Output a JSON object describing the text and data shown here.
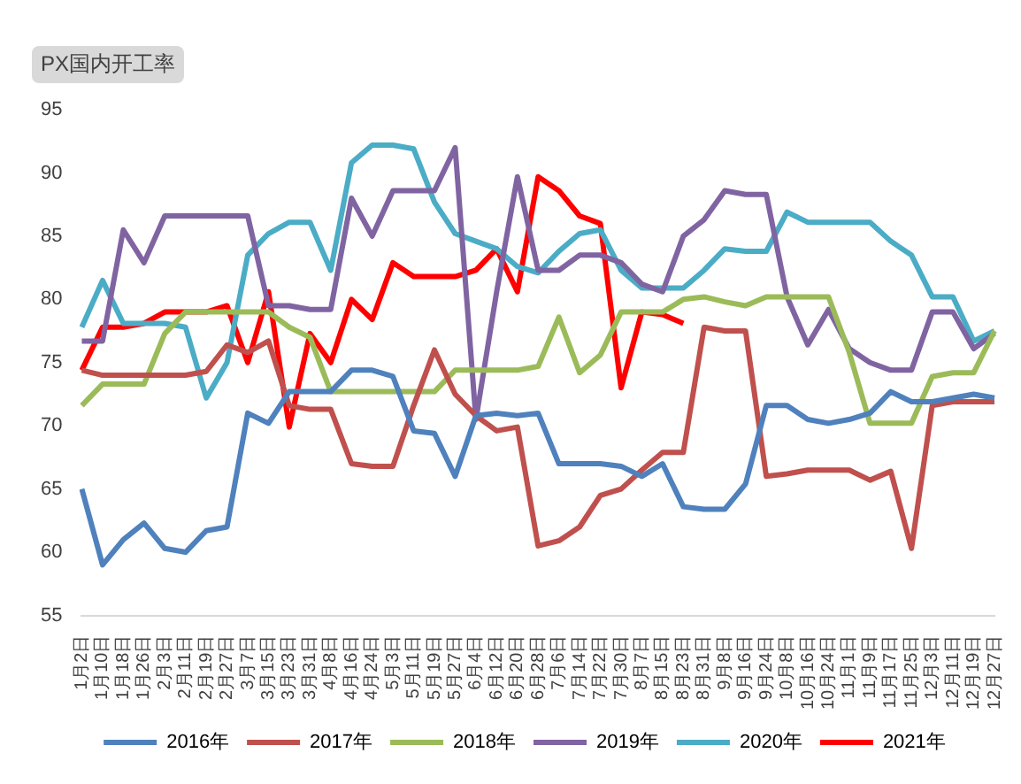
{
  "chart_data": {
    "type": "line",
    "title": "PX国内开工率",
    "categories": [
      "1月2日",
      "1月10日",
      "1月18日",
      "1月26日",
      "2月3日",
      "2月11日",
      "2月19日",
      "2月27日",
      "3月7日",
      "3月15日",
      "3月23日",
      "3月31日",
      "4月8日",
      "4月16日",
      "4月24日",
      "5月3日",
      "5月11日",
      "5月19日",
      "5月27日",
      "6月4日",
      "6月12日",
      "6月20日",
      "6月28日",
      "7月6日",
      "7月14日",
      "7月22日",
      "7月30日",
      "8月7日",
      "8月15日",
      "8月23日",
      "8月31日",
      "9月8日",
      "9月16日",
      "9月24日",
      "10月8日",
      "10月16日",
      "10月24日",
      "11月1日",
      "11月9日",
      "11月17日",
      "11月25日",
      "12月3日",
      "12月11日",
      "12月19日",
      "12月27日"
    ],
    "series": [
      {
        "name": "2016年",
        "color": "#4f81bd",
        "values": [
          65,
          59,
          61,
          62.3,
          60.3,
          60,
          61.7,
          62,
          71,
          70.2,
          72.7,
          72.7,
          72.7,
          74.4,
          74.4,
          73.9,
          69.6,
          69.4,
          66,
          70.8,
          71,
          70.8,
          71,
          67,
          67,
          67,
          66.8,
          66,
          67,
          63.6,
          63.4,
          63.4,
          65.4,
          71.6,
          71.6,
          70.5,
          70.2,
          70.5,
          71,
          72.7,
          71.9,
          71.9,
          72.2,
          72.5,
          72.2
        ]
      },
      {
        "name": "2017年",
        "color": "#c0504d",
        "values": [
          74.4,
          74,
          74,
          74,
          74,
          74,
          74.3,
          76.4,
          75.8,
          76.7,
          71.6,
          71.3,
          71.3,
          67,
          66.8,
          66.8,
          71.6,
          76,
          72.5,
          70.8,
          69.6,
          69.9,
          60.5,
          60.9,
          62,
          64.5,
          65,
          66.5,
          67.9,
          67.9,
          77.8,
          77.5,
          77.5,
          66,
          66.2,
          66.5,
          66.5,
          66.5,
          65.7,
          66.4,
          60.3,
          71.6,
          71.9,
          71.9,
          71.9
        ]
      },
      {
        "name": "2018年",
        "color": "#9bbb59",
        "values": [
          71.6,
          73.3,
          73.3,
          73.3,
          77.3,
          79,
          79,
          79,
          79,
          79,
          77.8,
          77,
          72.7,
          72.7,
          72.7,
          72.7,
          72.7,
          72.7,
          74.4,
          74.4,
          74.4,
          74.4,
          74.7,
          78.6,
          74.2,
          75.6,
          79,
          79,
          79,
          80,
          80.2,
          79.8,
          79.5,
          80.2,
          80.2,
          80.2,
          80.2,
          75.8,
          70.2,
          70.2,
          70.2,
          73.9,
          74.2,
          74.2,
          77.5
        ]
      },
      {
        "name": "2019年",
        "color": "#8064a2",
        "values": [
          76.7,
          76.7,
          85.5,
          82.9,
          86.6,
          86.6,
          86.6,
          86.6,
          86.6,
          79.5,
          79.5,
          79.2,
          79.2,
          88,
          85,
          88.6,
          88.6,
          88.6,
          92,
          70.5,
          80.6,
          89.7,
          82.3,
          82.3,
          83.5,
          83.5,
          82.9,
          81.2,
          80.6,
          85,
          86.3,
          88.6,
          88.3,
          88.3,
          80.2,
          76.4,
          79.2,
          76.1,
          75,
          74.4,
          74.4,
          79,
          79,
          76.1,
          77.3
        ]
      },
      {
        "name": "2020年",
        "color": "#4bacc6",
        "values": [
          77.8,
          81.5,
          78.1,
          78.1,
          78.1,
          77.8,
          72.2,
          75,
          83.5,
          85.2,
          86.1,
          86.1,
          82.3,
          90.8,
          92.2,
          92.2,
          91.9,
          87.7,
          85.2,
          84.6,
          84,
          82.6,
          82.1,
          83.8,
          85.2,
          85.5,
          82.3,
          80.9,
          80.9,
          80.9,
          82.3,
          84,
          83.8,
          83.8,
          86.9,
          86.1,
          86.1,
          86.1,
          86.1,
          84.6,
          83.5,
          80.2,
          80.2,
          76.7,
          77.5
        ]
      },
      {
        "name": "2021年",
        "color": "#ff0000",
        "values": [
          74.4,
          77.8,
          77.8,
          78.1,
          79,
          79,
          79,
          79.5,
          75,
          80.6,
          69.9,
          77.3,
          75,
          80,
          78.4,
          82.9,
          81.8,
          81.8,
          81.8,
          82.3,
          84,
          80.6,
          89.7,
          88.6,
          86.6,
          86,
          73,
          79,
          78.8,
          78.1,
          null,
          null,
          null,
          null,
          null,
          null,
          null,
          null,
          null,
          null,
          null,
          null,
          null,
          null,
          null
        ]
      }
    ],
    "ylim": [
      55,
      95
    ],
    "yticks": [
      55,
      60,
      65,
      70,
      75,
      80,
      85,
      90,
      95
    ],
    "grid": false,
    "legend": "bottom",
    "marker": "none",
    "line_style": "solid"
  }
}
